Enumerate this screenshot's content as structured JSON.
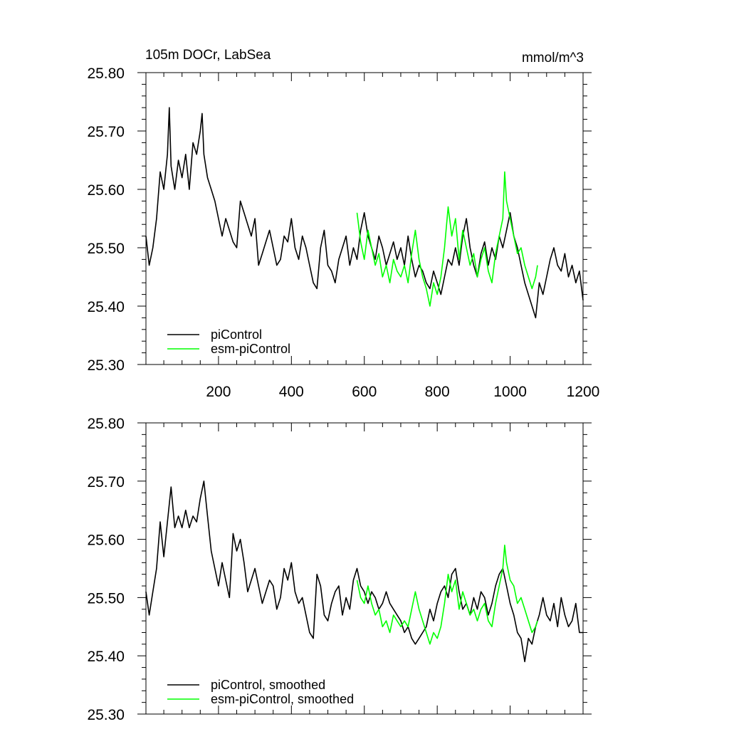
{
  "chart_data": [
    {
      "type": "line",
      "title_left": "105m DOCr, LabSea",
      "title_right": "mmol/m^3",
      "xlim": [
        1,
        1200
      ],
      "ylim": [
        25.3,
        25.8
      ],
      "y_ticks": [
        25.3,
        25.4,
        25.5,
        25.6,
        25.7,
        25.8
      ],
      "y_tick_labels": [
        "25.30",
        "25.40",
        "25.50",
        "25.60",
        "25.70",
        "25.80"
      ],
      "x_ticks": [
        200,
        400,
        600,
        800,
        1000,
        1200
      ],
      "x_tick_labels": [
        "200",
        "400",
        "600",
        "800",
        "1000",
        "1200"
      ],
      "legend_position": "bottom-left",
      "series": [
        {
          "name": "piControl",
          "color": "#000000",
          "x": [
            1,
            10,
            20,
            30,
            40,
            50,
            60,
            65,
            70,
            80,
            90,
            100,
            110,
            120,
            130,
            140,
            150,
            155,
            160,
            170,
            180,
            190,
            200,
            210,
            220,
            230,
            240,
            250,
            260,
            270,
            280,
            290,
            300,
            310,
            320,
            330,
            340,
            350,
            360,
            370,
            380,
            390,
            400,
            410,
            420,
            430,
            440,
            450,
            460,
            470,
            480,
            490,
            500,
            510,
            520,
            530,
            540,
            550,
            560,
            570,
            580,
            590,
            600,
            610,
            620,
            630,
            640,
            650,
            660,
            670,
            680,
            690,
            700,
            710,
            720,
            730,
            740,
            750,
            760,
            770,
            780,
            790,
            800,
            810,
            820,
            830,
            840,
            850,
            860,
            870,
            880,
            890,
            900,
            910,
            920,
            930,
            940,
            950,
            960,
            970,
            980,
            990,
            1000,
            1010,
            1020,
            1030,
            1040,
            1050,
            1060,
            1070,
            1080,
            1090,
            1100,
            1110,
            1120,
            1130,
            1140,
            1150,
            1160,
            1170,
            1180,
            1190,
            1200
          ],
          "values": [
            25.52,
            25.47,
            25.5,
            25.55,
            25.63,
            25.6,
            25.66,
            25.74,
            25.64,
            25.6,
            25.65,
            25.62,
            25.66,
            25.6,
            25.68,
            25.66,
            25.7,
            25.73,
            25.66,
            25.62,
            25.6,
            25.58,
            25.55,
            25.52,
            25.55,
            25.53,
            25.51,
            25.5,
            25.58,
            25.56,
            25.54,
            25.52,
            25.55,
            25.47,
            25.49,
            25.51,
            25.53,
            25.5,
            25.47,
            25.48,
            25.52,
            25.51,
            25.55,
            25.5,
            25.48,
            25.52,
            25.5,
            25.47,
            25.44,
            25.43,
            25.5,
            25.53,
            25.47,
            25.46,
            25.44,
            25.48,
            25.5,
            25.52,
            25.47,
            25.5,
            25.48,
            25.53,
            25.56,
            25.52,
            25.5,
            25.48,
            25.52,
            25.5,
            25.47,
            25.49,
            25.51,
            25.48,
            25.5,
            25.47,
            25.52,
            25.48,
            25.45,
            25.47,
            25.46,
            25.44,
            25.43,
            25.46,
            25.44,
            25.42,
            25.45,
            25.48,
            25.47,
            25.5,
            25.47,
            25.52,
            25.55,
            25.5,
            25.47,
            25.45,
            25.49,
            25.51,
            25.47,
            25.5,
            25.48,
            25.52,
            25.5,
            25.53,
            25.56,
            25.52,
            25.5,
            25.47,
            25.44,
            25.42,
            25.4,
            25.38,
            25.44,
            25.42,
            25.45,
            25.48,
            25.5,
            25.47,
            25.46,
            25.49,
            25.45,
            25.47,
            25.44,
            25.46,
            25.41
          ]
        },
        {
          "name": "esm-piControl",
          "color": "#00ff00",
          "x": [
            580,
            590,
            600,
            610,
            620,
            630,
            640,
            650,
            660,
            670,
            680,
            690,
            700,
            710,
            720,
            730,
            740,
            750,
            760,
            770,
            780,
            790,
            800,
            810,
            820,
            830,
            840,
            850,
            860,
            870,
            880,
            890,
            900,
            910,
            920,
            930,
            940,
            950,
            960,
            970,
            980,
            985,
            990,
            1000,
            1010,
            1020,
            1030,
            1040,
            1050,
            1060,
            1070,
            1075
          ],
          "values": [
            25.56,
            25.51,
            25.48,
            25.53,
            25.5,
            25.47,
            25.49,
            25.45,
            25.47,
            25.44,
            25.48,
            25.46,
            25.45,
            25.47,
            25.44,
            25.49,
            25.53,
            25.48,
            25.45,
            25.43,
            25.4,
            25.44,
            25.42,
            25.45,
            25.5,
            25.57,
            25.52,
            25.55,
            25.48,
            25.53,
            25.5,
            25.47,
            25.49,
            25.45,
            25.48,
            25.5,
            25.46,
            25.44,
            25.49,
            25.52,
            25.55,
            25.63,
            25.58,
            25.55,
            25.52,
            25.49,
            25.5,
            25.47,
            25.45,
            25.43,
            25.45,
            25.47
          ]
        }
      ]
    },
    {
      "type": "line",
      "xlim": [
        1,
        1200
      ],
      "ylim": [
        25.3,
        25.8
      ],
      "y_ticks": [
        25.3,
        25.4,
        25.5,
        25.6,
        25.7,
        25.8
      ],
      "y_tick_labels": [
        "25.30",
        "25.40",
        "25.50",
        "25.60",
        "25.70",
        "25.80"
      ],
      "x_ticks": [
        200,
        400,
        600,
        800,
        1000,
        1200
      ],
      "x_tick_labels": [],
      "legend_position": "bottom-left",
      "series": [
        {
          "name": "piControl, smoothed",
          "color": "#000000",
          "x": [
            1,
            10,
            20,
            30,
            40,
            50,
            60,
            70,
            80,
            90,
            100,
            110,
            120,
            130,
            140,
            150,
            160,
            170,
            180,
            190,
            200,
            210,
            220,
            230,
            240,
            250,
            260,
            270,
            280,
            290,
            300,
            310,
            320,
            330,
            340,
            350,
            360,
            370,
            380,
            390,
            400,
            410,
            420,
            430,
            440,
            450,
            460,
            470,
            480,
            490,
            500,
            510,
            520,
            530,
            540,
            550,
            560,
            570,
            580,
            590,
            600,
            610,
            620,
            630,
            640,
            650,
            660,
            670,
            680,
            690,
            700,
            710,
            720,
            730,
            740,
            750,
            760,
            770,
            780,
            790,
            800,
            810,
            820,
            830,
            840,
            850,
            860,
            870,
            880,
            890,
            900,
            910,
            920,
            930,
            940,
            950,
            960,
            970,
            980,
            990,
            1000,
            1010,
            1020,
            1030,
            1040,
            1050,
            1060,
            1070,
            1080,
            1090,
            1100,
            1110,
            1120,
            1130,
            1140,
            1150,
            1160,
            1170,
            1180,
            1190,
            1200
          ],
          "values": [
            25.51,
            25.47,
            25.51,
            25.55,
            25.63,
            25.57,
            25.63,
            25.69,
            25.62,
            25.64,
            25.62,
            25.65,
            25.62,
            25.64,
            25.63,
            25.67,
            25.7,
            25.64,
            25.58,
            25.55,
            25.52,
            25.56,
            25.53,
            25.5,
            25.61,
            25.58,
            25.6,
            25.56,
            25.51,
            25.53,
            25.55,
            25.52,
            25.49,
            25.51,
            25.53,
            25.52,
            25.48,
            25.5,
            25.55,
            25.53,
            25.56,
            25.51,
            25.49,
            25.5,
            25.47,
            25.44,
            25.43,
            25.54,
            25.52,
            25.47,
            25.46,
            25.49,
            25.51,
            25.52,
            25.47,
            25.5,
            25.48,
            25.53,
            25.55,
            25.52,
            25.51,
            25.49,
            25.51,
            25.5,
            25.48,
            25.49,
            25.51,
            25.49,
            25.48,
            25.47,
            25.46,
            25.44,
            25.45,
            25.43,
            25.42,
            25.43,
            25.44,
            25.45,
            25.48,
            25.46,
            25.49,
            25.51,
            25.52,
            25.5,
            25.54,
            25.55,
            25.51,
            25.48,
            25.49,
            25.47,
            25.5,
            25.48,
            25.51,
            25.5,
            25.47,
            25.49,
            25.52,
            25.54,
            25.55,
            25.52,
            25.49,
            25.47,
            25.44,
            25.43,
            25.39,
            25.43,
            25.42,
            25.45,
            25.47,
            25.5,
            25.47,
            25.46,
            25.49,
            25.45,
            25.5,
            25.47,
            25.45,
            25.46,
            25.49,
            25.44,
            25.44
          ]
        },
        {
          "name": "esm-piControl, smoothed",
          "color": "#00ff00",
          "x": [
            580,
            590,
            600,
            610,
            620,
            630,
            640,
            650,
            660,
            670,
            680,
            690,
            700,
            710,
            720,
            730,
            740,
            750,
            760,
            770,
            780,
            790,
            800,
            810,
            820,
            830,
            840,
            850,
            860,
            870,
            880,
            890,
            900,
            910,
            920,
            930,
            940,
            950,
            960,
            970,
            980,
            985,
            990,
            1000,
            1010,
            1020,
            1030,
            1040,
            1050,
            1060,
            1070,
            1075
          ],
          "values": [
            25.53,
            25.5,
            25.49,
            25.52,
            25.49,
            25.47,
            25.48,
            25.45,
            25.46,
            25.44,
            25.47,
            25.46,
            25.45,
            25.46,
            25.45,
            25.48,
            25.51,
            25.48,
            25.46,
            25.44,
            25.42,
            25.44,
            25.43,
            25.45,
            25.49,
            25.54,
            25.51,
            25.53,
            25.48,
            25.51,
            25.49,
            25.47,
            25.48,
            25.46,
            25.48,
            25.49,
            25.46,
            25.45,
            25.49,
            25.52,
            25.55,
            25.59,
            25.56,
            25.53,
            25.52,
            25.49,
            25.5,
            25.48,
            25.46,
            25.44,
            25.45,
            25.46
          ]
        }
      ]
    }
  ]
}
